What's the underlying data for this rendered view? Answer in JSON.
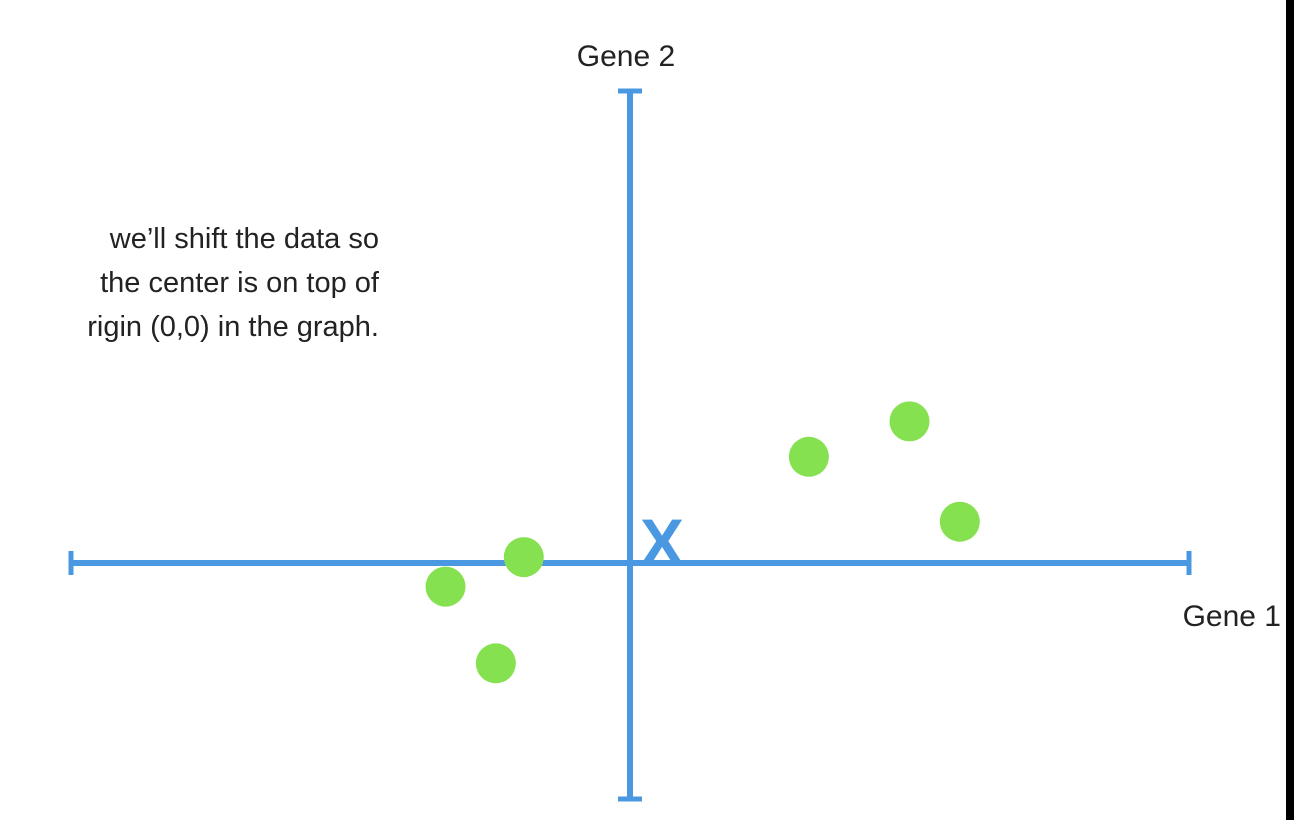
{
  "caption": {
    "lines": [
      "we’ll shift the data so",
      "the center is on top of",
      "rigin (0,0) in the graph."
    ]
  },
  "chart_data": {
    "type": "scatter",
    "xlabel": "Gene 1",
    "ylabel": "Gene 2",
    "xlim": [
      -10,
      10
    ],
    "ylim": [
      -4,
      8
    ],
    "grid": false,
    "series": [
      {
        "x": [
          3.2,
          5.0,
          5.9,
          -1.9,
          -3.3,
          -2.4
        ],
        "y": [
          1.8,
          2.4,
          0.7,
          0.1,
          -0.4,
          -1.7
        ]
      }
    ],
    "center_marker": {
      "label": "X",
      "x": 0,
      "y": 0
    },
    "colors": {
      "axis": "#4a98e2",
      "points": "#86e150"
    }
  }
}
